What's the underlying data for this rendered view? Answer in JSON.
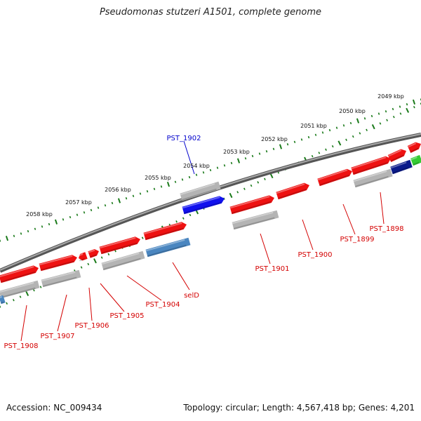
{
  "title": "Pseudomonas stutzeri A1501, complete genome",
  "footer": {
    "accession": "Accession: NC_009434",
    "summary": "Topology: circular; Length: 4,567,418 bp; Genes: 4,201"
  },
  "colors": {
    "backbone": "#7a7a7a",
    "tick_green": "#1a7a1a",
    "gene_red": "#ee1111",
    "gene_gray": "#b4b4b4",
    "gene_blue": "#1111ee",
    "gene_steel": "#4a86c0",
    "gene_navy": "#0a1a8a",
    "gene_green": "#33cc33",
    "label_red": "#d40000",
    "label_blue": "#0000cc"
  },
  "kbp_labels": [
    "2058 kbp",
    "2057 kbp",
    "2056 kbp",
    "2055 kbp",
    "2054 kbp",
    "2053 kbp",
    "2052 kbp",
    "2051 kbp",
    "2050 kbp",
    "2049 kbp"
  ],
  "gene_labels": [
    {
      "name": "PST_1902",
      "color": "blue"
    },
    {
      "name": "PST_1908",
      "color": "red"
    },
    {
      "name": "PST_1907",
      "color": "red"
    },
    {
      "name": "PST_1906",
      "color": "red"
    },
    {
      "name": "PST_1905",
      "color": "red"
    },
    {
      "name": "PST_1904",
      "color": "red"
    },
    {
      "name": "selD",
      "color": "red"
    },
    {
      "name": "PST_1901",
      "color": "red"
    },
    {
      "name": "PST_1900",
      "color": "red"
    },
    {
      "name": "PST_1899",
      "color": "red"
    },
    {
      "name": "PST_1898",
      "color": "red"
    }
  ]
}
